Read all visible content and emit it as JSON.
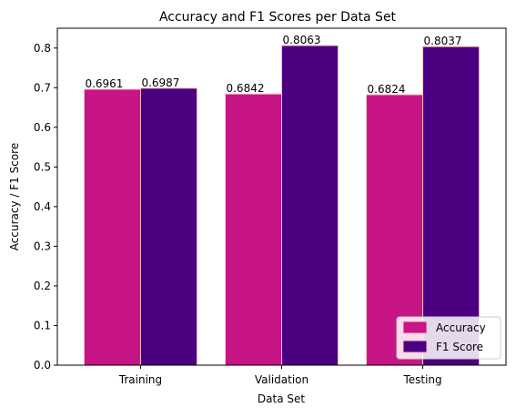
{
  "chart_data": {
    "type": "bar",
    "title": "Accuracy and F1 Scores per Data Set",
    "xlabel": "Data Set",
    "ylabel": "Accuracy / F1 Score",
    "categories": [
      "Training",
      "Validation",
      "Testing"
    ],
    "series": [
      {
        "name": "Accuracy",
        "values": [
          0.6961,
          0.6842,
          0.6824
        ],
        "labels": [
          "0.6961",
          "0.6842",
          "0.6824"
        ],
        "color": "#c71585"
      },
      {
        "name": "F1 Score",
        "values": [
          0.6987,
          0.8063,
          0.8037
        ],
        "labels": [
          "0.6987",
          "0.8063",
          "0.8037"
        ],
        "color": "#4b0082"
      }
    ],
    "ylim": [
      0,
      0.85
    ],
    "yticks": [
      0.0,
      0.1,
      0.2,
      0.3,
      0.4,
      0.5,
      0.6,
      0.7,
      0.8
    ],
    "ytick_labels": [
      "0.0",
      "0.1",
      "0.2",
      "0.3",
      "0.4",
      "0.5",
      "0.6",
      "0.7",
      "0.8"
    ],
    "grid": false,
    "legend_position": "bottom-right",
    "bar_edge_color": "#ffc0cb"
  }
}
